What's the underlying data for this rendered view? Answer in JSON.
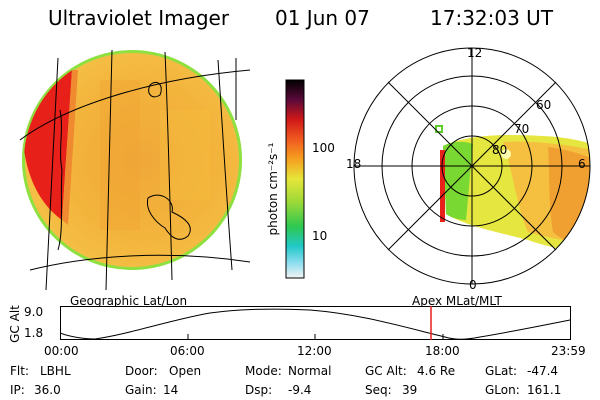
{
  "header": {
    "title": "Ultraviolet Imager",
    "date": "01 Jun 07",
    "time": "17:32:03 UT"
  },
  "colorbar": {
    "unit_label": "photon cm⁻²s⁻¹",
    "ticks": [
      "100",
      "10"
    ],
    "scale": "log"
  },
  "polar": {
    "mlt_labels": [
      "12",
      "18",
      "6",
      "0"
    ],
    "lat_labels": [
      "60",
      "70",
      "80"
    ]
  },
  "projections": {
    "left": "Geographic Lat/Lon",
    "right": "Apex MLat/MLT"
  },
  "altitude_plot": {
    "axis_label": "GC Alt",
    "y_ticks": [
      "9.0",
      "1.8"
    ],
    "x_ticks": [
      "00:00",
      "06:00",
      "12:00",
      "18:00",
      "23:59"
    ],
    "marker_time": "17:32"
  },
  "info": {
    "row1": [
      {
        "label": "Flt:",
        "value": "LBHL"
      },
      {
        "label": "Door:",
        "value": "Open"
      },
      {
        "label": "Mode:",
        "value": "Normal"
      },
      {
        "label": "GC Alt:",
        "value": "4.6 Re"
      },
      {
        "label": "GLat:",
        "value": "-47.4"
      }
    ],
    "row2": [
      {
        "label": "IP:",
        "value": "36.0"
      },
      {
        "label": "Gain:",
        "value": "14"
      },
      {
        "label": "Dsp:",
        "value": "-9.4"
      },
      {
        "label": "Seq:",
        "value": "39"
      },
      {
        "label": "GLon:",
        "value": "161.1"
      }
    ]
  },
  "colors": {
    "red": "#e8201a",
    "orange": "#f5a623",
    "yellow": "#e6e640",
    "green": "#5cd02a",
    "marker": "#e8201a"
  }
}
